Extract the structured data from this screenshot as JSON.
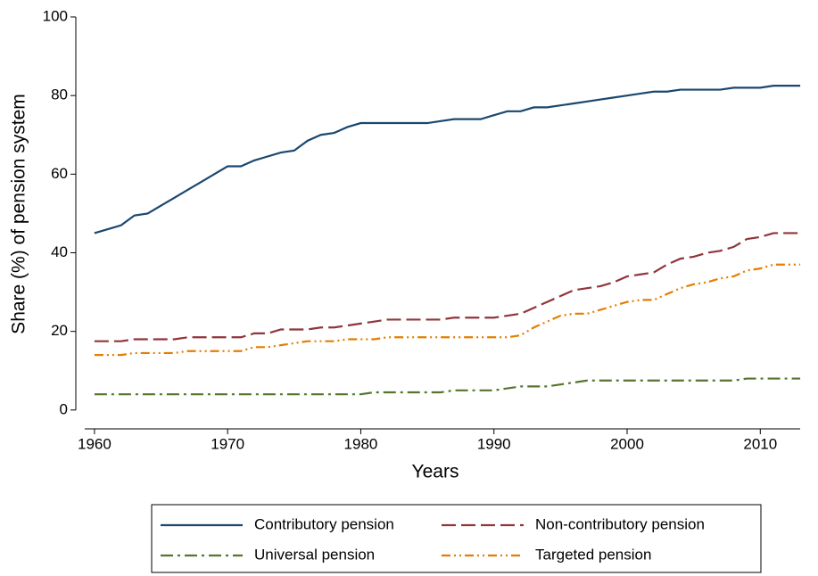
{
  "chart_data": {
    "type": "line",
    "x_label": "Years",
    "y_label": "Share (%) of pension system",
    "x": [
      1960,
      1961,
      1962,
      1963,
      1964,
      1965,
      1966,
      1967,
      1968,
      1969,
      1970,
      1971,
      1972,
      1973,
      1974,
      1975,
      1976,
      1977,
      1978,
      1979,
      1980,
      1981,
      1982,
      1983,
      1984,
      1985,
      1986,
      1987,
      1988,
      1989,
      1990,
      1991,
      1992,
      1993,
      1994,
      1995,
      1996,
      1997,
      1998,
      1999,
      2000,
      2001,
      2002,
      2003,
      2004,
      2005,
      2006,
      2007,
      2008,
      2009,
      2010,
      2011,
      2012,
      2013
    ],
    "series": [
      {
        "name": "Contributory pension",
        "color": "#1a476f",
        "dash": "none",
        "values": [
          45,
          46,
          47,
          49.5,
          50,
          52,
          54,
          56,
          58,
          60,
          62,
          62,
          63.5,
          64.5,
          65.5,
          66,
          68.5,
          70,
          70.5,
          72,
          73,
          73,
          73,
          73,
          73,
          73,
          73.5,
          74,
          74,
          74,
          75,
          76,
          76,
          77,
          77,
          77.5,
          78,
          78.5,
          79,
          79.5,
          80,
          80.5,
          81,
          81,
          81.5,
          81.5,
          81.5,
          81.5,
          82,
          82,
          82,
          82.5,
          82.5,
          82.5
        ]
      },
      {
        "name": "Non-contributory pension",
        "color": "#90353b",
        "dash": "16 6",
        "values": [
          17.5,
          17.5,
          17.5,
          18,
          18,
          18,
          18,
          18.5,
          18.5,
          18.5,
          18.5,
          18.5,
          19.5,
          19.5,
          20.5,
          20.5,
          20.5,
          21,
          21,
          21.5,
          22,
          22.5,
          23,
          23,
          23,
          23,
          23,
          23.5,
          23.5,
          23.5,
          23.5,
          24,
          24.5,
          26,
          27.5,
          29,
          30.5,
          31,
          31.5,
          32.5,
          34,
          34.5,
          35,
          37,
          38.5,
          39,
          40,
          40.5,
          41.5,
          43.5,
          44,
          45,
          45,
          45
        ]
      },
      {
        "name": "Universal pension",
        "color": "#55752f",
        "dash": "14 5 3 5",
        "values": [
          4,
          4,
          4,
          4,
          4,
          4,
          4,
          4,
          4,
          4,
          4,
          4,
          4,
          4,
          4,
          4,
          4,
          4,
          4,
          4,
          4,
          4.5,
          4.5,
          4.5,
          4.5,
          4.5,
          4.5,
          5,
          5,
          5,
          5,
          5.5,
          6,
          6,
          6,
          6.5,
          7,
          7.5,
          7.5,
          7.5,
          7.5,
          7.5,
          7.5,
          7.5,
          7.5,
          7.5,
          7.5,
          7.5,
          7.5,
          8,
          8,
          8,
          8,
          8
        ]
      },
      {
        "name": "Targeted pension",
        "color": "#e37e00",
        "dash": "10 4 2 4 2 4",
        "values": [
          14,
          14,
          14,
          14.5,
          14.5,
          14.5,
          14.5,
          15,
          15,
          15,
          15,
          15,
          16,
          16,
          16.5,
          17,
          17.5,
          17.5,
          17.5,
          18,
          18,
          18,
          18.5,
          18.5,
          18.5,
          18.5,
          18.5,
          18.5,
          18.5,
          18.5,
          18.5,
          18.5,
          19,
          21,
          22.5,
          24,
          24.5,
          24.5,
          25.5,
          26.5,
          27.5,
          28,
          28,
          29.5,
          31,
          32,
          32.5,
          33.5,
          34,
          35.5,
          36,
          37,
          37,
          37
        ]
      }
    ],
    "xlim": [
      1958.6,
      2014
    ],
    "ylim": [
      -4.8,
      100
    ],
    "xticks": [
      1960,
      1970,
      1980,
      1990,
      2000,
      2010
    ],
    "yticks": [
      0,
      20,
      40,
      60,
      80,
      100
    ],
    "grid": false,
    "legend": "bottom"
  }
}
